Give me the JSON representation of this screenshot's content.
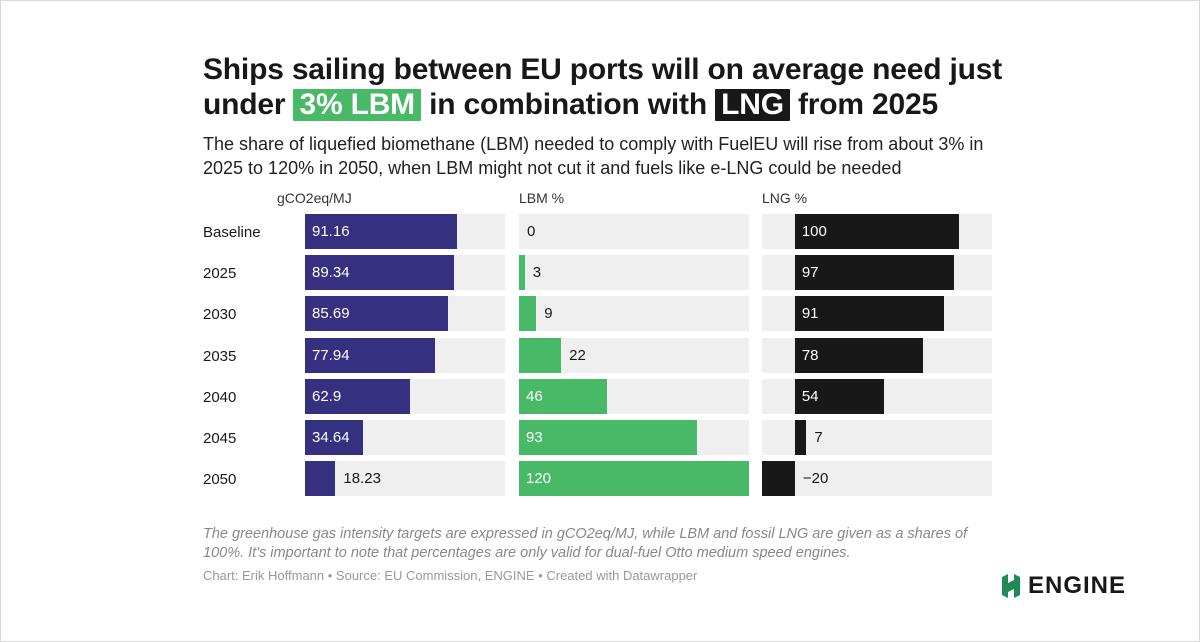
{
  "headline": {
    "part1": "Ships sailing between EU ports will on average need just under",
    "highlight1": "3% LBM",
    "part2": "in combination with",
    "highlight2": "LNG",
    "part3": "from 2025"
  },
  "subtitle": "The share of liquefied biomethane (LBM) needed to comply with FuelEU will rise from about 3% in 2025 to 120% in 2050, when LBM might not cut it and fuels like e-LNG could be needed",
  "notes": "The greenhouse gas intensity targets are expressed in gCO2eq/MJ, while LBM and fossil LNG are given as a shares of 100%. It's important to note that percentages are only valid for dual-fuel Otto medium speed engines.",
  "byline": "Chart: Erik Hoffmann • Source: EU Commission, ENGINE • Created with Datawrapper",
  "logo": {
    "text": "ENGINE",
    "icon": "engine-logo-icon",
    "color": "#1f8a58"
  },
  "colors": {
    "ghg": "#363080",
    "lbm": "#48b966",
    "lng": "#181818",
    "track": "#efefef"
  },
  "chart_data": {
    "type": "bar",
    "categories": [
      "Baseline",
      "2025",
      "2030",
      "2035",
      "2040",
      "2045",
      "2050"
    ],
    "series": [
      {
        "name": "gCO2eq/MJ",
        "values": [
          91.16,
          89.34,
          85.69,
          77.94,
          62.9,
          34.64,
          18.23
        ],
        "labels": [
          "91.16",
          "89.34",
          "85.69",
          "77.94",
          "62.9",
          "34.64",
          "18.23"
        ],
        "xlim": [
          0,
          120
        ]
      },
      {
        "name": "LBM %",
        "values": [
          0,
          3,
          9,
          22,
          46,
          93,
          120
        ],
        "labels": [
          "0",
          "3",
          "9",
          "22",
          "46",
          "93",
          "120"
        ],
        "xlim": [
          0,
          120
        ]
      },
      {
        "name": "LNG %",
        "values": [
          100,
          97,
          91,
          78,
          54,
          7,
          -20
        ],
        "labels": [
          "100",
          "97",
          "91",
          "78",
          "54",
          "7",
          "−20"
        ],
        "xlim": [
          -20,
          120
        ]
      }
    ]
  }
}
